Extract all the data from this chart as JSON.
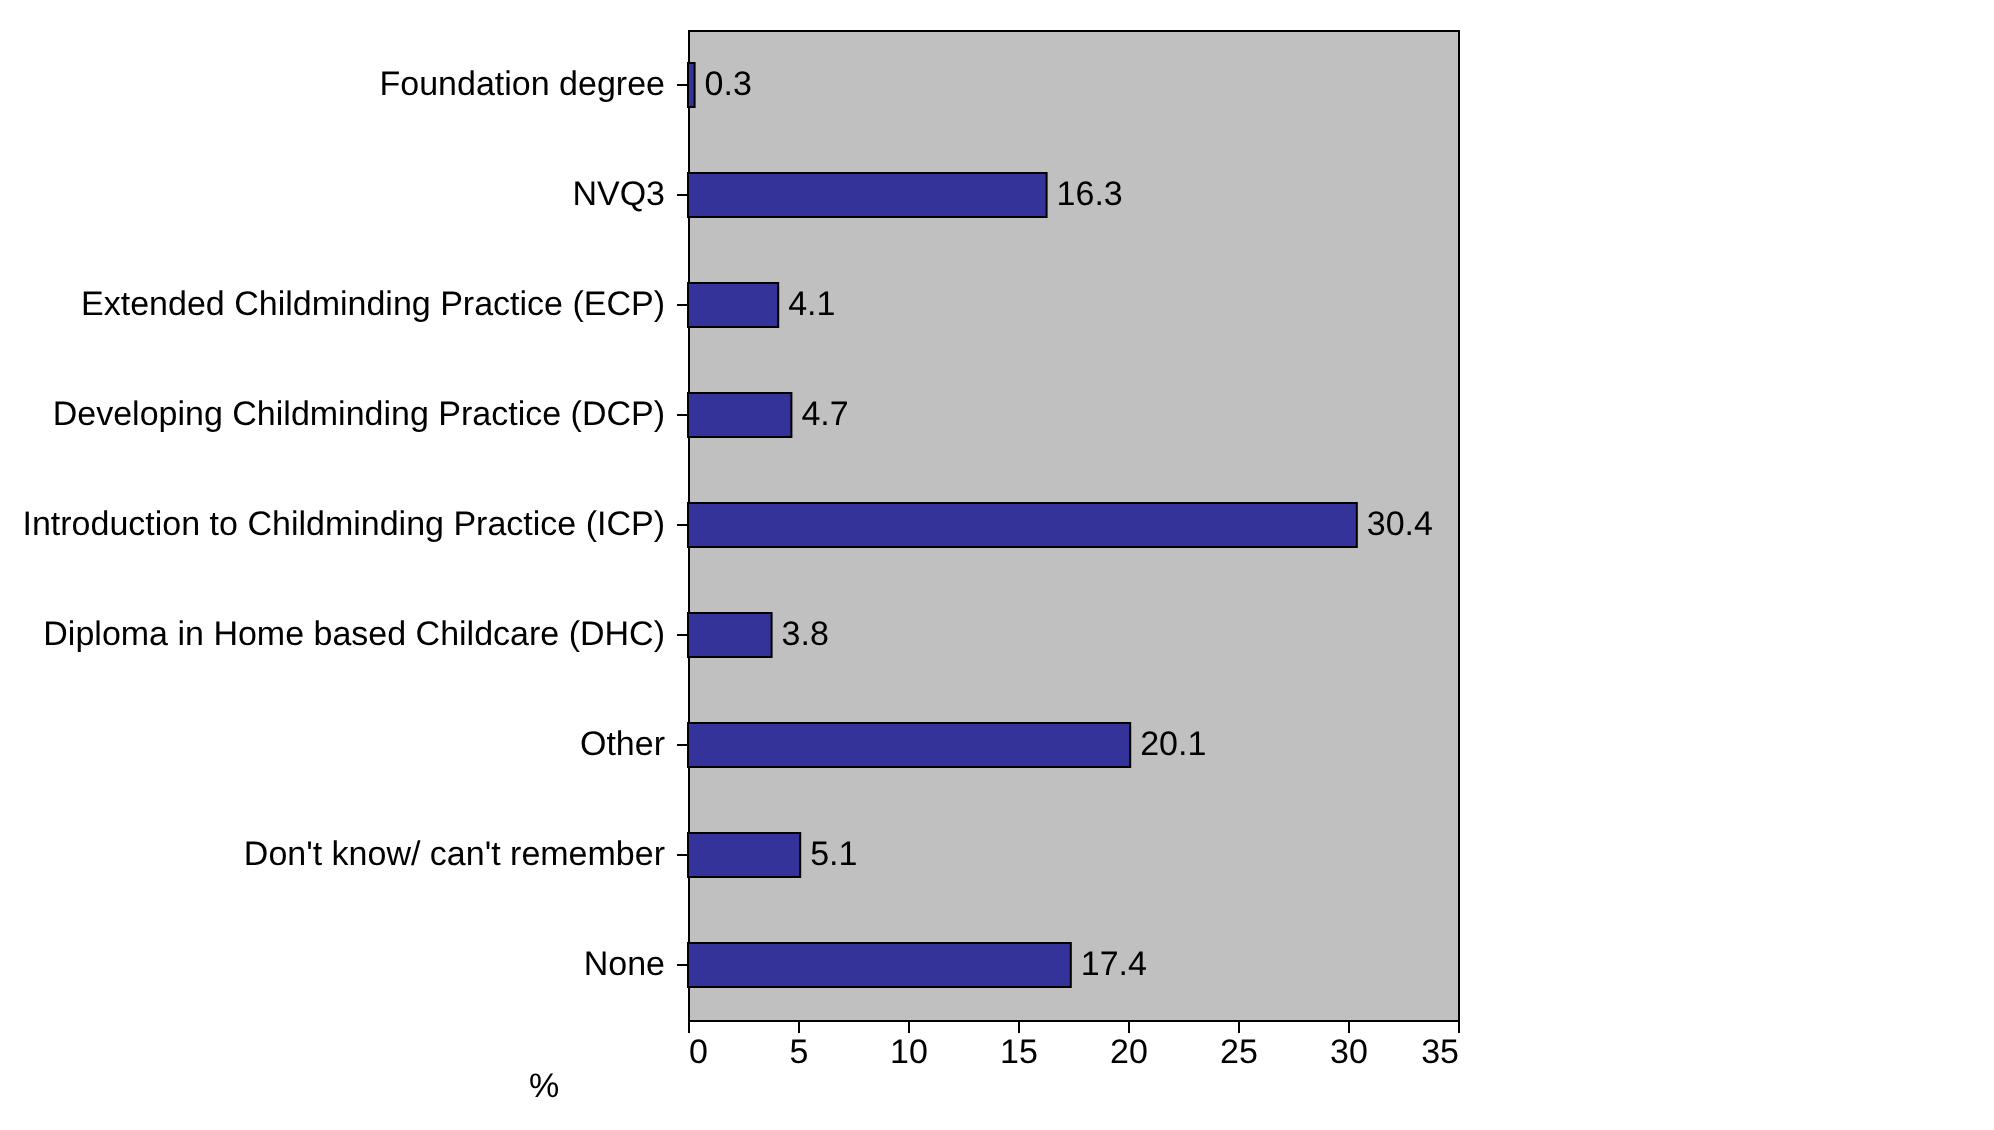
{
  "chart_data": {
    "type": "bar",
    "orientation": "horizontal",
    "xlabel": "%",
    "categories": [
      "Foundation degree",
      "NVQ3",
      "Extended Childminding Practice (ECP)",
      "Developing Childminding Practice (DCP)",
      "Introduction to Childminding Practice (ICP)",
      "Diploma in Home based Childcare (DHC)",
      "Other",
      "Don't know/ can't remember",
      "None"
    ],
    "values": [
      0.3,
      16.3,
      4.1,
      4.7,
      30.4,
      3.8,
      20.1,
      5.1,
      17.4
    ],
    "color": "#333399",
    "xlim": [
      0,
      35
    ],
    "xticks": [
      0,
      5,
      10,
      15,
      20,
      25,
      30,
      35
    ],
    "data_labels": true,
    "grid": false,
    "legend": false
  }
}
